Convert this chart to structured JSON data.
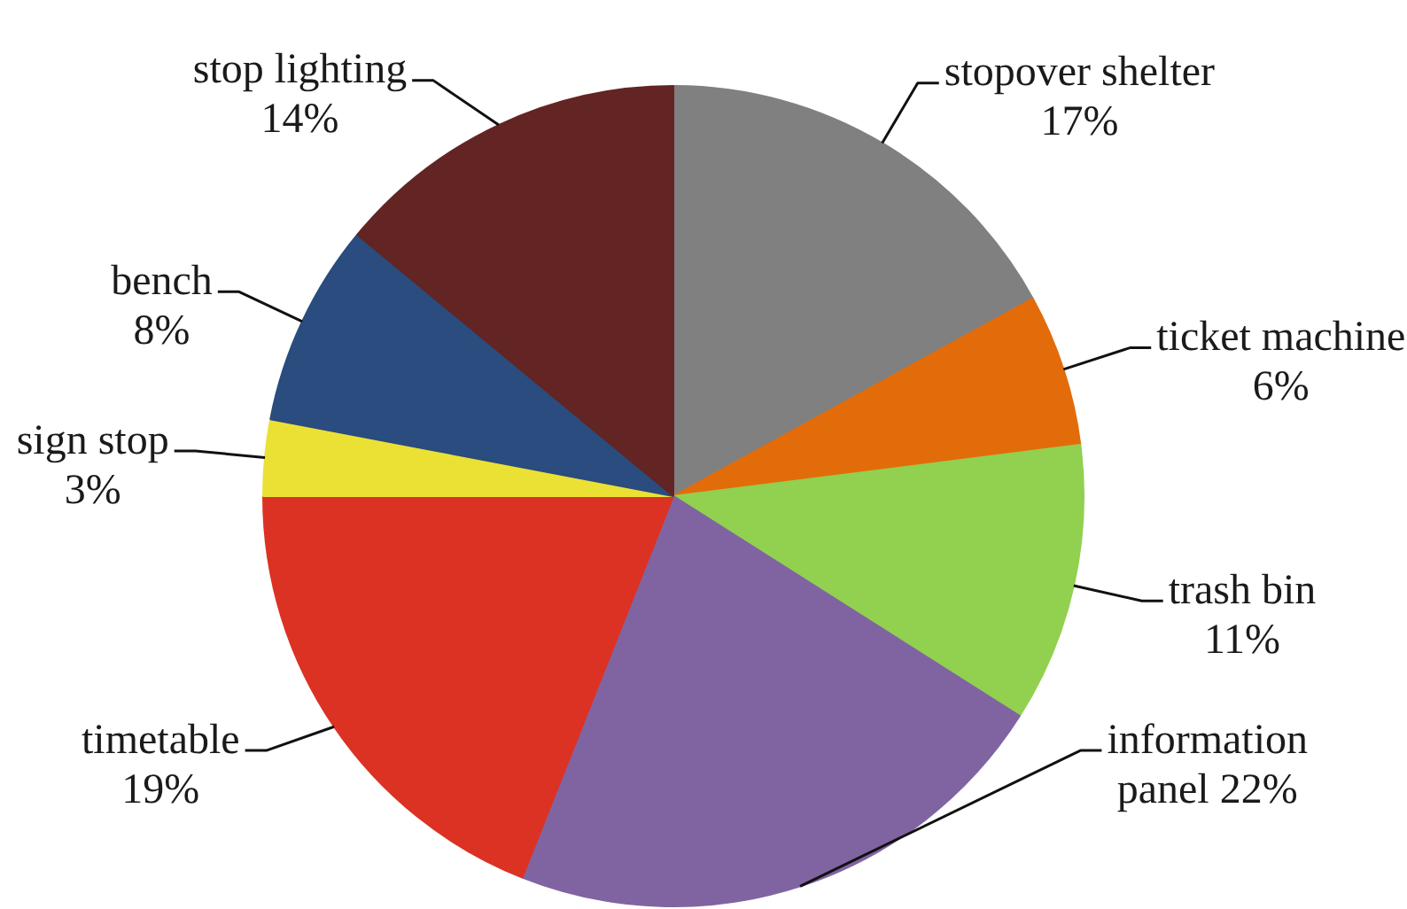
{
  "chart_data": {
    "type": "pie",
    "categories": [
      "stopover shelter",
      "ticket machine",
      "trash bin",
      "information panel",
      "timetable",
      "sign stop",
      "bench",
      "stop lighting"
    ],
    "values": [
      17,
      6,
      11,
      22,
      19,
      3,
      8,
      14
    ],
    "colors": [
      "#808080",
      "#e36c0a",
      "#92d050",
      "#8064a2",
      "#dc3224",
      "#ebe134",
      "#2a4c7f",
      "#632523"
    ],
    "value_labels": [
      "17%",
      "6%",
      "11%",
      "22%",
      "19%",
      "3%",
      "8%",
      "14%"
    ]
  }
}
